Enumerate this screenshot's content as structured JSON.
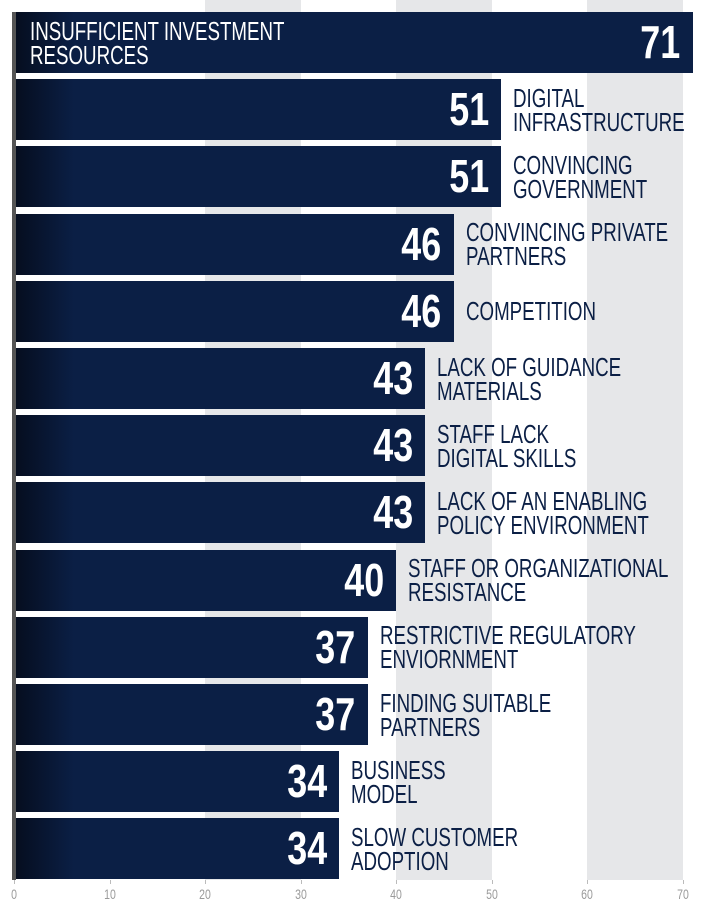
{
  "chart_data": {
    "type": "bar",
    "orientation": "horizontal",
    "categories": [
      "INSUFFICIENT INVESTMENT\nRESOURCES",
      "DIGITAL\nINFRASTRUCTURE",
      "CONVINCING\nGOVERNMENT",
      "CONVINCING PRIVATE\nPARTNERS",
      "COMPETITION",
      "LACK OF GUIDANCE\nMATERIALS",
      "STAFF LACK\nDIGITAL SKILLS",
      "LACK OF AN ENABLING\nPOLICY ENVIRONMENT",
      "STAFF OR ORGANIZATIONAL\nRESISTANCE",
      "RESTRICTIVE REGULATORY\nENVIORNMENT",
      "FINDING SUITABLE\nPARTNERS",
      "BUSINESS\nMODEL",
      "SLOW CUSTOMER\nADOPTION"
    ],
    "values": [
      71,
      51,
      51,
      46,
      46,
      43,
      43,
      43,
      40,
      37,
      37,
      34,
      34
    ],
    "color": "#0b1f45",
    "xlim": [
      0,
      70
    ],
    "xticks": [
      0,
      10,
      20,
      30,
      40,
      50,
      60,
      70
    ],
    "grid": true
  }
}
